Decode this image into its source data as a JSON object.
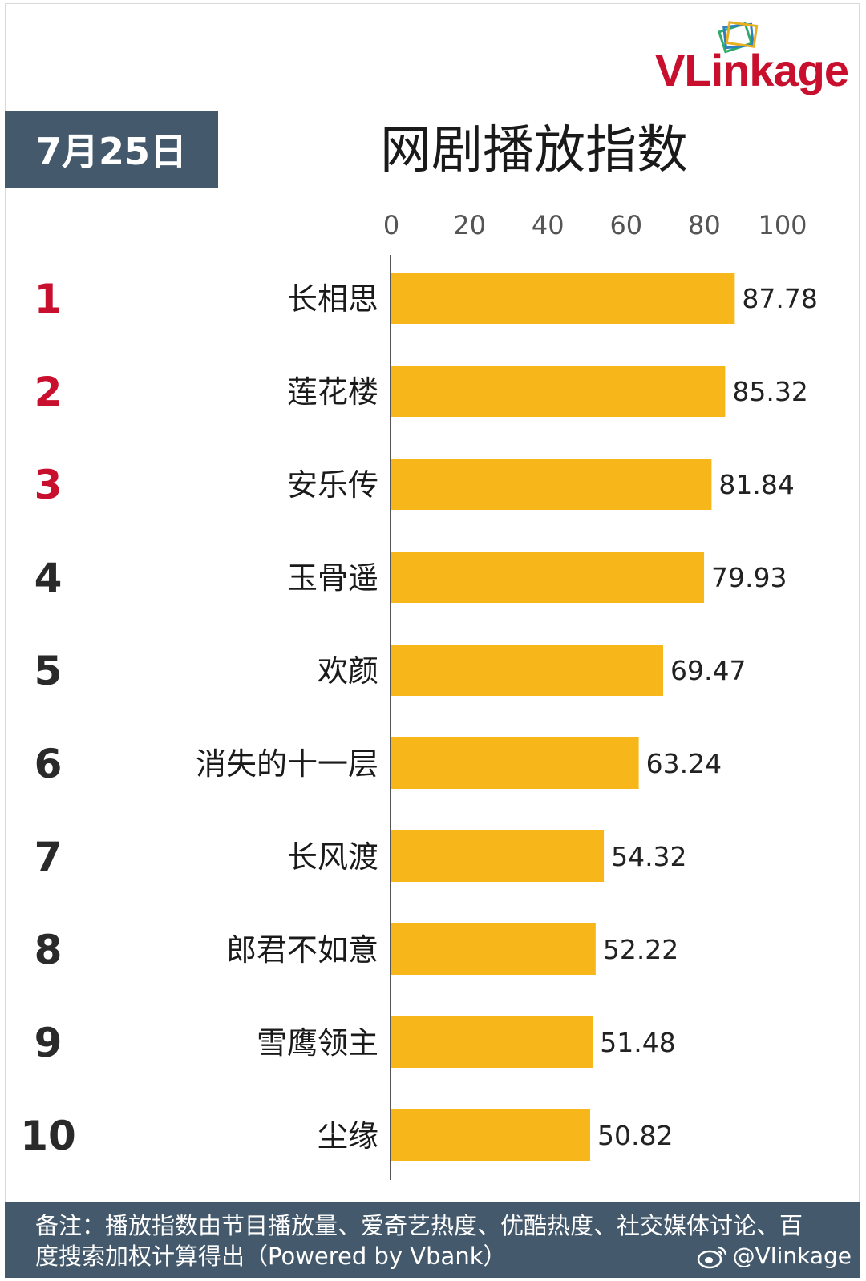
{
  "logo": {
    "text": "VLinkage"
  },
  "header": {
    "date": "7月25日",
    "title": "网剧播放指数"
  },
  "chart_data": {
    "type": "bar",
    "orientation": "horizontal",
    "title": "网剧播放指数",
    "ranks": [
      "1",
      "2",
      "3",
      "4",
      "5",
      "6",
      "7",
      "8",
      "9",
      "10"
    ],
    "categories": [
      "长相思",
      "莲花楼",
      "安乐传",
      "玉骨遥",
      "欢颜",
      "消失的十一层",
      "长风渡",
      "郎君不如意",
      "雪鹰领主",
      "尘缘"
    ],
    "values": [
      87.78,
      85.32,
      81.84,
      79.93,
      69.47,
      63.24,
      54.32,
      52.22,
      51.48,
      50.82
    ],
    "value_labels": [
      "87.78",
      "85.32",
      "81.84",
      "79.93",
      "69.47",
      "63.24",
      "54.32",
      "52.22",
      "51.48",
      "50.82"
    ],
    "xlim": [
      0,
      100
    ],
    "xticks": [
      "0",
      "20",
      "40",
      "60",
      "80",
      "100"
    ],
    "grid": false,
    "colors": {
      "bar": "#f7b71a",
      "top_rank": "#c8102e",
      "rank": "#2a2a2a",
      "axis": "#555555"
    }
  },
  "footer": {
    "note": "备注：播放指数由节目播放量、爱奇艺热度、优酷热度、社交媒体讨论、百度搜索加权计算得出（Powered by Vbank）",
    "watermark": "@Vlinkage",
    "watermark_icon": "weibo-icon"
  }
}
